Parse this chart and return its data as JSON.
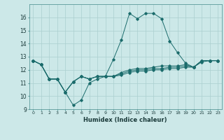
{
  "title": "",
  "xlabel": "Humidex (Indice chaleur)",
  "xlim": [
    -0.5,
    23.5
  ],
  "ylim": [
    9,
    17
  ],
  "yticks": [
    9,
    10,
    11,
    12,
    13,
    14,
    15,
    16
  ],
  "xticks": [
    0,
    1,
    2,
    3,
    4,
    5,
    6,
    7,
    8,
    9,
    10,
    11,
    12,
    13,
    14,
    15,
    16,
    17,
    18,
    19,
    20,
    21,
    22,
    23
  ],
  "background_color": "#cce8e8",
  "grid_color": "#aacfcf",
  "line_color": "#1a6b6b",
  "series": [
    [
      12.7,
      12.4,
      11.3,
      11.3,
      10.3,
      9.3,
      9.7,
      11.0,
      11.3,
      11.5,
      12.8,
      14.3,
      16.3,
      15.9,
      16.3,
      16.3,
      15.9,
      14.2,
      13.3,
      12.5,
      12.2,
      12.7,
      12.7,
      12.7
    ],
    [
      12.7,
      12.4,
      11.3,
      11.3,
      10.3,
      11.1,
      11.5,
      11.3,
      11.5,
      11.5,
      11.5,
      11.8,
      12.0,
      12.1,
      12.1,
      12.2,
      12.3,
      12.3,
      12.3,
      12.4,
      12.2,
      12.7,
      12.7,
      12.7
    ],
    [
      12.7,
      12.4,
      11.3,
      11.3,
      10.3,
      11.1,
      11.5,
      11.3,
      11.5,
      11.5,
      11.5,
      11.7,
      11.9,
      12.0,
      12.0,
      12.1,
      12.1,
      12.2,
      12.2,
      12.3,
      12.2,
      12.7,
      12.7,
      12.7
    ],
    [
      12.7,
      12.4,
      11.3,
      11.3,
      10.3,
      11.1,
      11.5,
      11.3,
      11.5,
      11.5,
      11.5,
      11.6,
      11.8,
      11.9,
      11.9,
      12.0,
      12.0,
      12.1,
      12.1,
      12.2,
      12.2,
      12.6,
      12.7,
      12.7
    ]
  ],
  "figsize": [
    3.2,
    2.0
  ],
  "dpi": 100
}
